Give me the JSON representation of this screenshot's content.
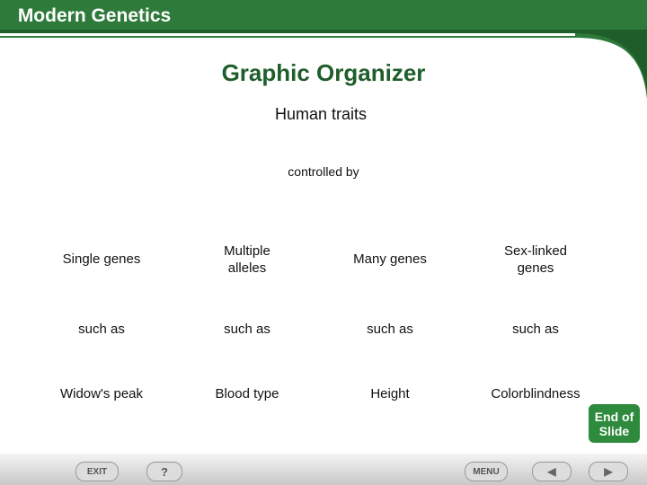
{
  "header": {
    "title": "Modern Genetics"
  },
  "slide": {
    "title": "Graphic Organizer",
    "root": "Human traits",
    "connector": "controlled by",
    "columns": [
      {
        "category": [
          "Single genes"
        ],
        "link": "such as",
        "example": "Widow's peak"
      },
      {
        "category": [
          "Multiple",
          "alleles"
        ],
        "link": "such as",
        "example": "Blood type"
      },
      {
        "category": [
          "Many genes"
        ],
        "link": "such as",
        "example": "Height"
      },
      {
        "category": [
          "Sex-linked",
          "genes"
        ],
        "link": "such as",
        "example": "Colorblindness"
      }
    ]
  },
  "nav": {
    "end": [
      "End of",
      "Slide"
    ],
    "exit": "EXIT",
    "help": "?",
    "menu": "MENU"
  }
}
